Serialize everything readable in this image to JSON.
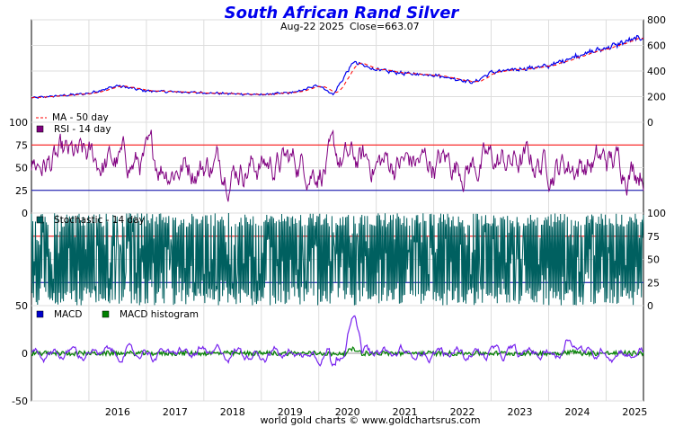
{
  "chart_data": {
    "title": "South African Rand Silver",
    "subtitle_date": "Aug-22  2025",
    "subtitle_close": "Close=663.07",
    "footer": "world gold charts © www.goldchartsrus.com",
    "x_labels": [
      "2016",
      "2017",
      "2018",
      "2019",
      "2020",
      "2021",
      "2022",
      "2023",
      "2024",
      "2025"
    ],
    "colors": {
      "price": "#0000ee",
      "ma": "#ff0000",
      "rsi": "#800080",
      "stoch": "#006060",
      "macd": "#7722ee",
      "macd_hist": "#008000",
      "upper_line": "#ff0000",
      "lower_line": "#0000aa",
      "grid": "#dddddd"
    },
    "panels": [
      {
        "name": "price",
        "type": "line",
        "y_ticks": [
          "0",
          "200",
          "400",
          "600",
          "800"
        ],
        "ylim": [
          0,
          800
        ],
        "legend": [
          "MA - 50 day"
        ],
        "key_points": [
          [
            2015.0,
            190
          ],
          [
            2016.0,
            225
          ],
          [
            2016.5,
            285
          ],
          [
            2017.0,
            245
          ],
          [
            2018.0,
            230
          ],
          [
            2019.0,
            215
          ],
          [
            2019.6,
            235
          ],
          [
            2020.0,
            290
          ],
          [
            2020.25,
            215
          ],
          [
            2020.6,
            470
          ],
          [
            2021.0,
            410
          ],
          [
            2021.5,
            380
          ],
          [
            2022.0,
            370
          ],
          [
            2022.7,
            310
          ],
          [
            2023.0,
            390
          ],
          [
            2023.5,
            415
          ],
          [
            2024.0,
            440
          ],
          [
            2024.5,
            520
          ],
          [
            2025.0,
            580
          ],
          [
            2025.5,
            650
          ],
          [
            2025.64,
            663
          ]
        ]
      },
      {
        "name": "rsi",
        "type": "line",
        "y_ticks": [
          "0",
          "25",
          "50",
          "75",
          "100"
        ],
        "ylim": [
          0,
          100
        ],
        "levels": [
          25,
          75
        ],
        "legend": [
          "RSI - 14 day"
        ]
      },
      {
        "name": "stochastic",
        "type": "line",
        "y_ticks": [
          "0",
          "25",
          "50",
          "75",
          "100"
        ],
        "ylim": [
          0,
          100
        ],
        "levels": [
          25,
          75
        ],
        "legend": [
          "Stochastic - 14 day"
        ]
      },
      {
        "name": "macd",
        "type": "line",
        "y_ticks": [
          "-50",
          "0",
          "50"
        ],
        "ylim": [
          -50,
          50
        ],
        "legend": [
          "MACD",
          "MACD histogram"
        ]
      }
    ]
  }
}
